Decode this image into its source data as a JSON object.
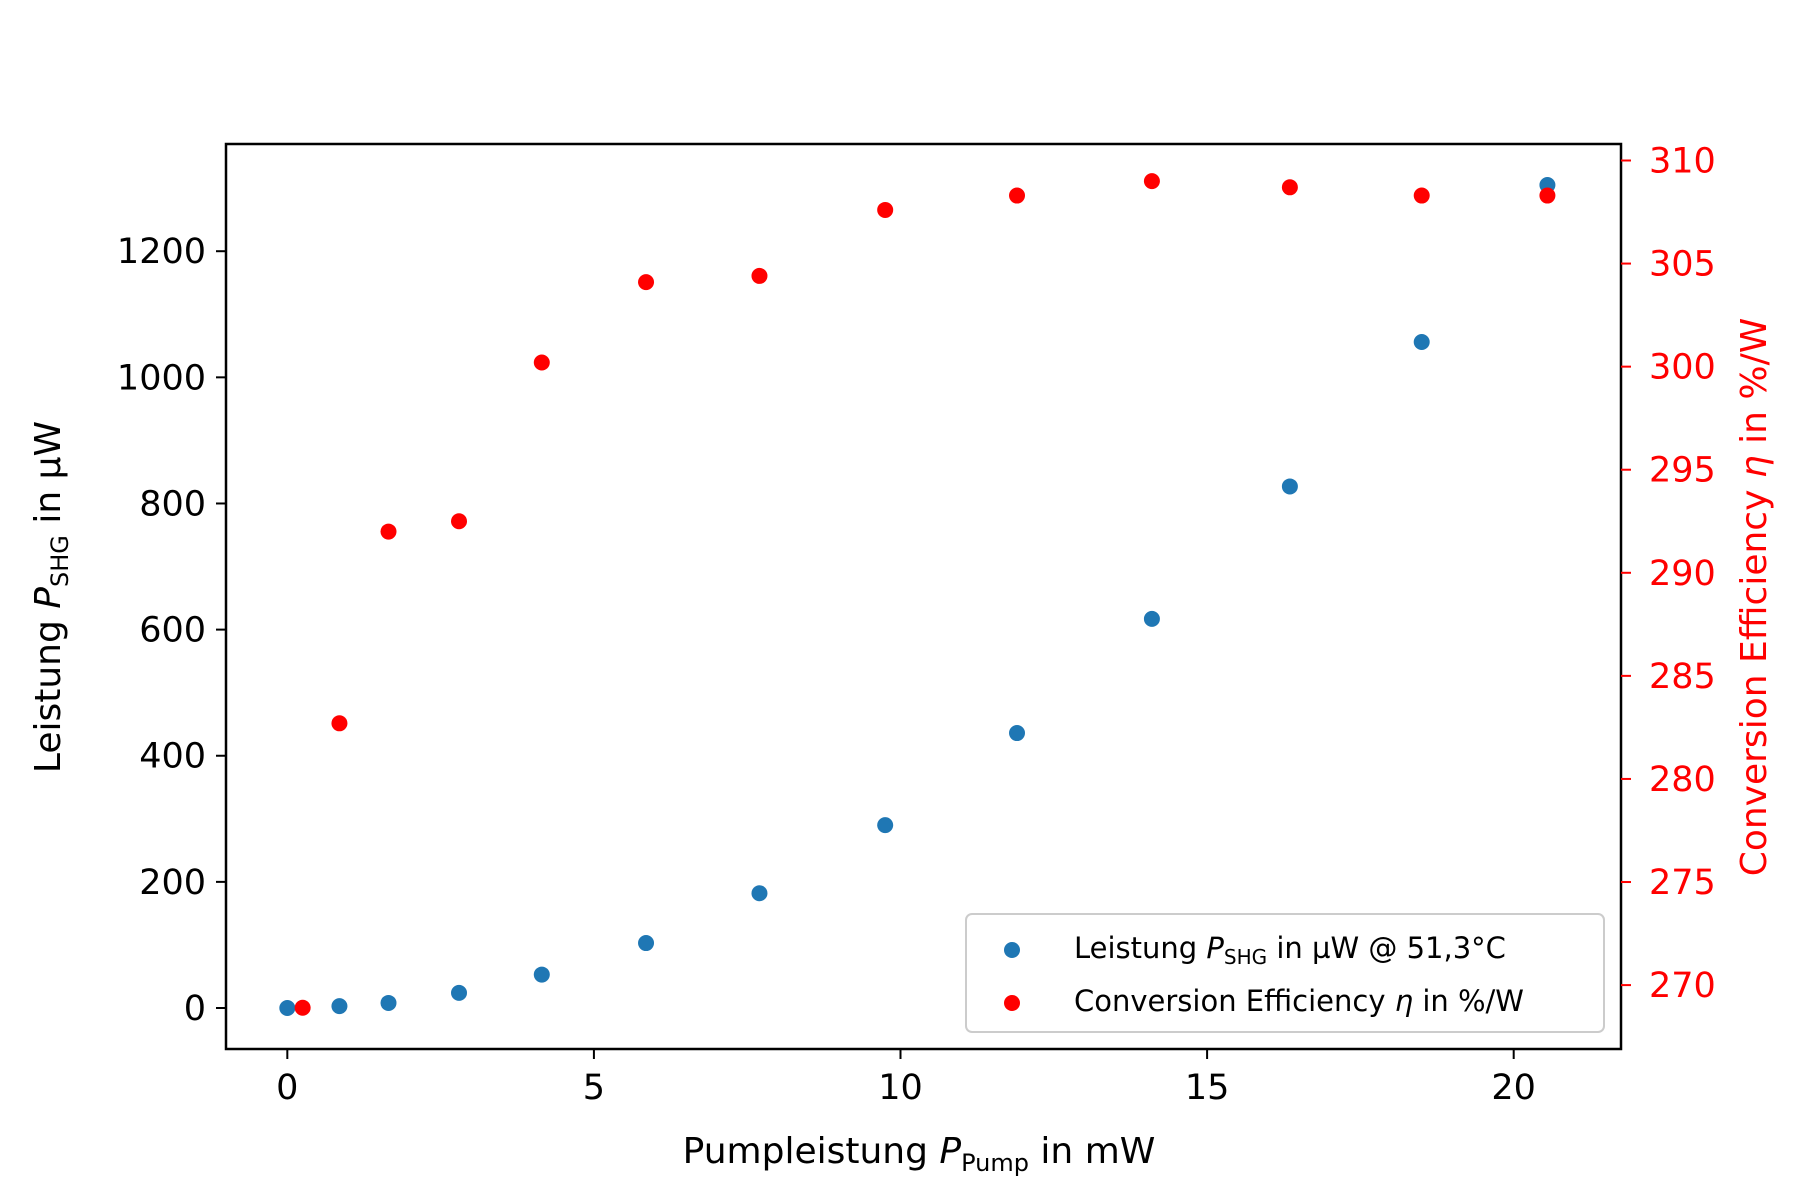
{
  "chart_data": {
    "type": "scatter",
    "xlabel": {
      "prefix": "Pumpleistung ",
      "var": "P",
      "sub": "Pump",
      "suffix": " in mW"
    },
    "ylabel_left": {
      "prefix": "Leistung ",
      "var": "P",
      "sub": "SHG",
      "suffix": " in µW"
    },
    "ylabel_right": {
      "prefix": "Conversion Efficiency ",
      "var": "η",
      "suffix": " in %/W"
    },
    "xlim": [
      -1,
      21.75
    ],
    "ylim_left": [
      -65,
      1370
    ],
    "ylim_right": [
      266.9,
      310.8
    ],
    "xticks": [
      0,
      5,
      10,
      15,
      20
    ],
    "yticks_left": [
      0,
      200,
      400,
      600,
      800,
      1000,
      1200
    ],
    "yticks_right": [
      270,
      275,
      280,
      285,
      290,
      295,
      300,
      305,
      310
    ],
    "grid": false,
    "legend_position": "lower-right",
    "series": [
      {
        "name": "Leistung P_SHG in µW @ 51,3°C",
        "legend": {
          "prefix": "Leistung ",
          "var": "P",
          "sub": "SHG",
          "suffix": " in µW @ 51,3°C"
        },
        "axis": "left",
        "color": "#1f77b4",
        "x": [
          0.0,
          0.85,
          1.65,
          2.8,
          4.15,
          5.85,
          7.7,
          9.75,
          11.9,
          14.1,
          16.35,
          18.5,
          20.55
        ],
        "y": [
          0,
          3,
          8,
          24,
          53,
          103,
          182,
          290,
          436,
          617,
          827,
          1056,
          1305
        ]
      },
      {
        "name": "Conversion Efficiency η in %/W",
        "legend": {
          "prefix": "Conversion Efficiency ",
          "var": "η",
          "sub": "",
          "suffix": " in %/W"
        },
        "axis": "right",
        "color": "#ff0000",
        "x": [
          0.25,
          0.85,
          1.65,
          2.8,
          4.15,
          5.85,
          7.7,
          9.75,
          11.9,
          14.1,
          16.35,
          18.5,
          20.55
        ],
        "y": [
          268.9,
          282.7,
          292.0,
          292.5,
          300.2,
          304.1,
          304.4,
          307.6,
          308.3,
          309.0,
          308.7,
          308.3,
          308.3
        ]
      }
    ]
  }
}
